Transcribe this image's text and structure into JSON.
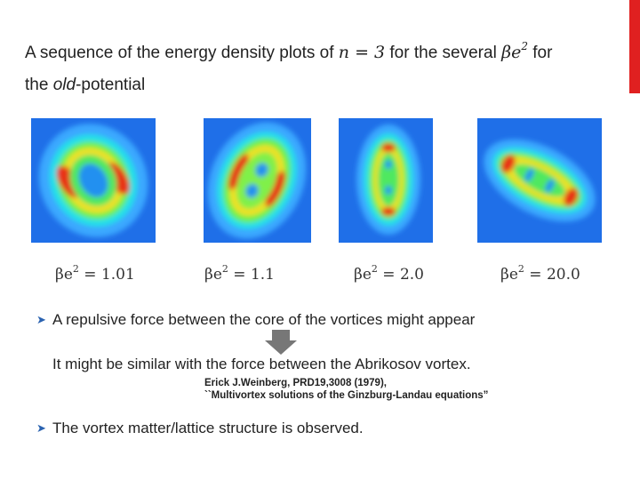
{
  "title": {
    "segments": [
      {
        "text": "A sequence of the energy density plots of ",
        "style": "plain"
      },
      {
        "text": "n = 3",
        "style": "math"
      },
      {
        "text": " for the several ",
        "style": "plain"
      },
      {
        "text": "βe",
        "style": "math"
      },
      {
        "text": "2",
        "style": "sup"
      },
      {
        "text": " for",
        "style": "plain"
      },
      {
        "text": "the ",
        "style": "break"
      },
      {
        "text": "old",
        "style": "italic"
      },
      {
        "text": "-potential",
        "style": "plain"
      }
    ]
  },
  "captions": [
    {
      "symbol": "βe",
      "exp": "2",
      "rest": " = 1.01"
    },
    {
      "symbol": "βe",
      "exp": "2",
      "rest": " = 1.1"
    },
    {
      "symbol": "βe",
      "exp": "2",
      "rest": " = 2.0"
    },
    {
      "symbol": "βe",
      "exp": "2",
      "rest": " = 20.0"
    }
  ],
  "bullets": {
    "first": "A repulsive force between the core of the vortices might appear",
    "follow": "It might be similar with the force between the Abrikosov vortex.",
    "citation": [
      "Erick J.Weinberg, PRD19,3008 (1979),",
      "``Multivortex solutions of the Ginzburg-Landau equations”"
    ],
    "last": "The vortex matter/lattice structure is observed."
  }
}
